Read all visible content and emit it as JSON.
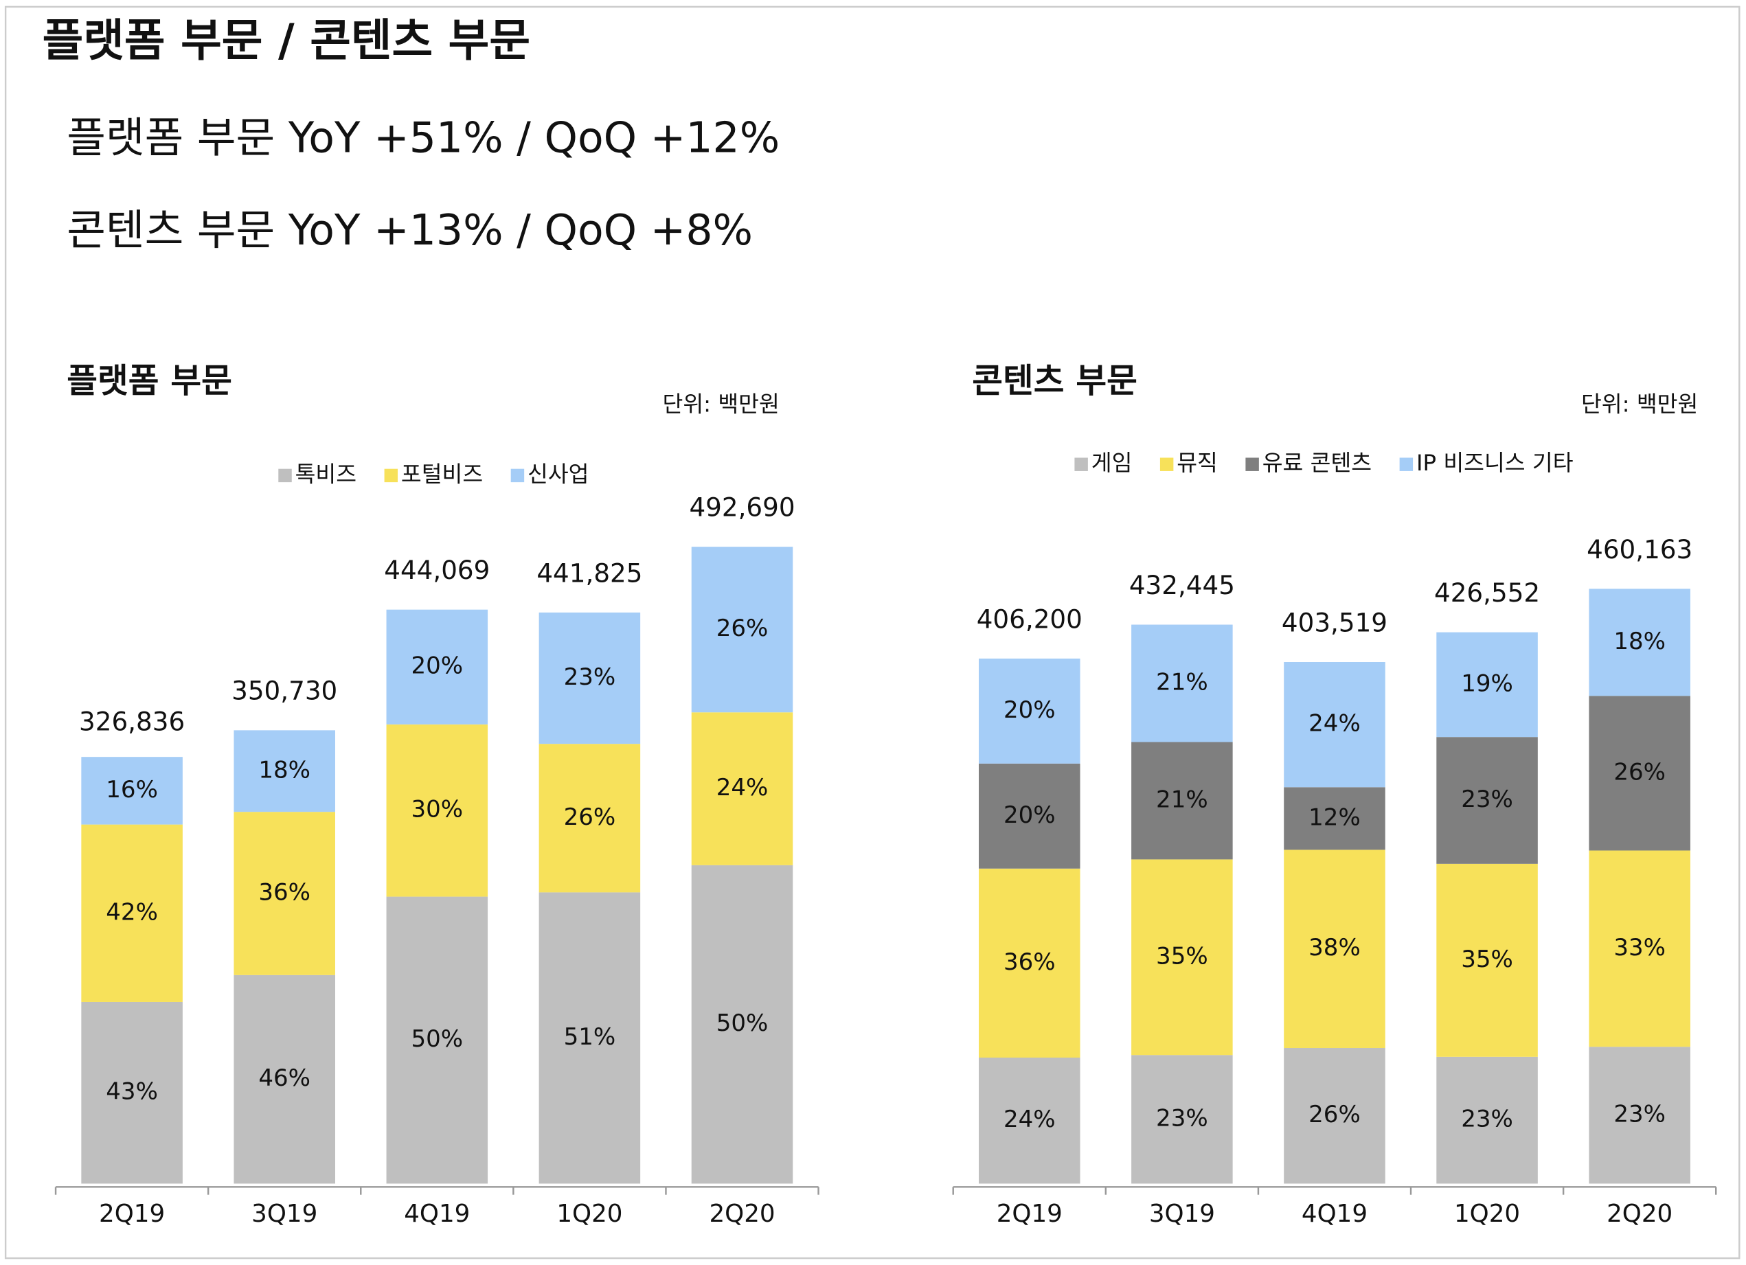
{
  "header": {
    "title": "플랫폼 부문  /  콘텐츠 부문",
    "lines": [
      "플랫폼 부문  YoY +51% / QoQ +12%",
      "콘텐츠 부문  YoY +13% / QoQ +8%"
    ]
  },
  "chart_data": [
    {
      "type": "bar",
      "stacked": true,
      "title": "플랫폼 부문",
      "unit": "단위: 백만원",
      "categories": [
        "2Q19",
        "3Q19",
        "4Q19",
        "1Q20",
        "2Q20"
      ],
      "series": [
        {
          "name": "톡비즈",
          "color": "#bfbfbf",
          "values": [
            43,
            46,
            50,
            51,
            50
          ],
          "value_labels": [
            "43%",
            "46%",
            "50%",
            "51%",
            "50%"
          ]
        },
        {
          "name": "포털비즈",
          "color": "#f7e15a",
          "values": [
            42,
            36,
            30,
            26,
            24
          ],
          "value_labels": [
            "42%",
            "36%",
            "30%",
            "26%",
            "24%"
          ]
        },
        {
          "name": "신사업",
          "color": "#a5cdf7",
          "values": [
            16,
            18,
            20,
            23,
            26
          ],
          "value_labels": [
            "16%",
            "18%",
            "20%",
            "23%",
            "26%"
          ]
        }
      ],
      "totals": {
        "values": [
          326836,
          350730,
          444069,
          441825,
          492690
        ],
        "value_labels": [
          "326,836",
          "350,730",
          "444,069",
          "441,825",
          "492,690"
        ]
      }
    },
    {
      "type": "bar",
      "stacked": true,
      "title": "콘텐츠 부문",
      "unit": "단위: 백만원",
      "categories": [
        "2Q19",
        "3Q19",
        "4Q19",
        "1Q20",
        "2Q20"
      ],
      "series": [
        {
          "name": "게임",
          "color": "#bfbfbf",
          "values": [
            24,
            23,
            26,
            23,
            23
          ],
          "value_labels": [
            "24%",
            "23%",
            "26%",
            "23%",
            "23%"
          ]
        },
        {
          "name": "뮤직",
          "color": "#f7e15a",
          "values": [
            36,
            35,
            38,
            35,
            33
          ],
          "value_labels": [
            "36%",
            "35%",
            "38%",
            "35%",
            "33%"
          ]
        },
        {
          "name": "유료 콘텐츠",
          "color": "#7f7f7f",
          "values": [
            20,
            21,
            12,
            23,
            26
          ],
          "value_labels": [
            "20%",
            "21%",
            "12%",
            "23%",
            "26%"
          ]
        },
        {
          "name": "IP 비즈니스 기타",
          "color": "#a5cdf7",
          "values": [
            20,
            21,
            24,
            19,
            18
          ],
          "value_labels": [
            "20%",
            "21%",
            "24%",
            "19%",
            "18%"
          ]
        }
      ],
      "totals": {
        "values": [
          406200,
          432445,
          403519,
          426552,
          460163
        ],
        "value_labels": [
          "406,200",
          "432,445",
          "403,519",
          "426,552",
          "460,163"
        ]
      }
    }
  ]
}
